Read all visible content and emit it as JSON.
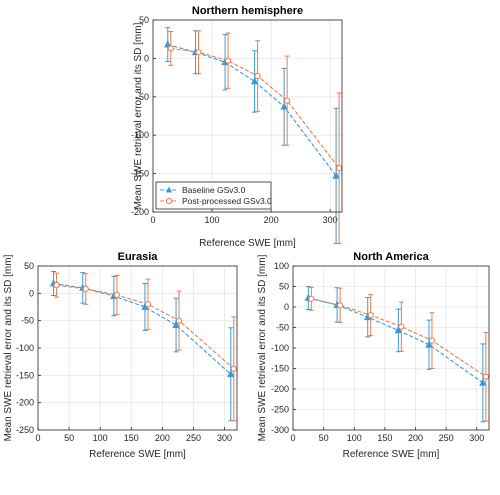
{
  "colors": {
    "baseline": "#3a9ad9",
    "post": "#ec7b4a",
    "grid": "#e6e6e6",
    "axis": "#262626"
  },
  "legend": {
    "placement": "bottom-left",
    "entries": [
      "Baseline GSv3.0",
      "Post-processed GSv3.0"
    ]
  },
  "chart_data": [
    {
      "type": "line",
      "title": "Northern hemisphere",
      "xlabel": "Reference SWE [mm]",
      "ylabel": "Mean SWE retrieval error and its SD [mm]",
      "xlim": [
        0,
        320
      ],
      "ylim": [
        -200,
        50
      ],
      "grid": true,
      "xticks": [
        0,
        100,
        200,
        300
      ],
      "yticks": [
        50,
        0,
        -50,
        -100,
        -150,
        -200
      ],
      "x": [
        25,
        72,
        122,
        172,
        222,
        310
      ],
      "series": [
        {
          "name": "Baseline GSv3.0",
          "marker": "triangle",
          "values": [
            18,
            8,
            -5,
            -30,
            -63,
            -153
          ],
          "sd": [
            22,
            28,
            36,
            40,
            50,
            88
          ]
        },
        {
          "name": "Post-processed GSv3.0",
          "marker": "circle",
          "values": [
            13,
            8,
            -3,
            -23,
            -55,
            -143
          ],
          "sd": [
            22,
            28,
            36,
            46,
            58,
            98
          ]
        }
      ]
    },
    {
      "type": "line",
      "title": "Eurasia",
      "xlabel": "Reference SWE [mm]",
      "ylabel": "Mean SWE retrieval error and its SD [mm]",
      "xlim": [
        0,
        320
      ],
      "ylim": [
        -250,
        50
      ],
      "grid": true,
      "xticks": [
        0,
        50,
        100,
        150,
        200,
        250,
        300
      ],
      "yticks": [
        50,
        0,
        -50,
        -100,
        -150,
        -200,
        -250
      ],
      "x": [
        25,
        72,
        122,
        172,
        222,
        310
      ],
      "series": [
        {
          "name": "Baseline GSv3.0",
          "marker": "triangle",
          "values": [
            18,
            10,
            -5,
            -25,
            -58,
            -148
          ],
          "sd": [
            22,
            28,
            36,
            43,
            49,
            85
          ]
        },
        {
          "name": "Post-processed GSv3.0",
          "marker": "circle",
          "values": [
            15,
            8,
            -3,
            -20,
            -50,
            -138
          ],
          "sd": [
            22,
            28,
            36,
            46,
            54,
            95
          ]
        }
      ]
    },
    {
      "type": "line",
      "title": "North America",
      "xlabel": "Reference SWE [mm]",
      "ylabel": "Mean SWE retrieval error and its SD [mm]",
      "xlim": [
        0,
        320
      ],
      "ylim": [
        -300,
        100
      ],
      "grid": true,
      "xticks": [
        0,
        50,
        100,
        150,
        200,
        250,
        300
      ],
      "yticks": [
        100,
        50,
        0,
        -50,
        -100,
        -150,
        -200,
        -250,
        -300
      ],
      "x": [
        25,
        72,
        122,
        172,
        222,
        310
      ],
      "series": [
        {
          "name": "Baseline GSv3.0",
          "marker": "triangle",
          "values": [
            22,
            5,
            -25,
            -57,
            -92,
            -185
          ],
          "sd": [
            28,
            42,
            48,
            52,
            60,
            95
          ]
        },
        {
          "name": "Post-processed GSv3.0",
          "marker": "circle",
          "values": [
            20,
            4,
            -20,
            -48,
            -82,
            -170
          ],
          "sd": [
            28,
            42,
            50,
            60,
            68,
            108
          ]
        }
      ]
    }
  ]
}
